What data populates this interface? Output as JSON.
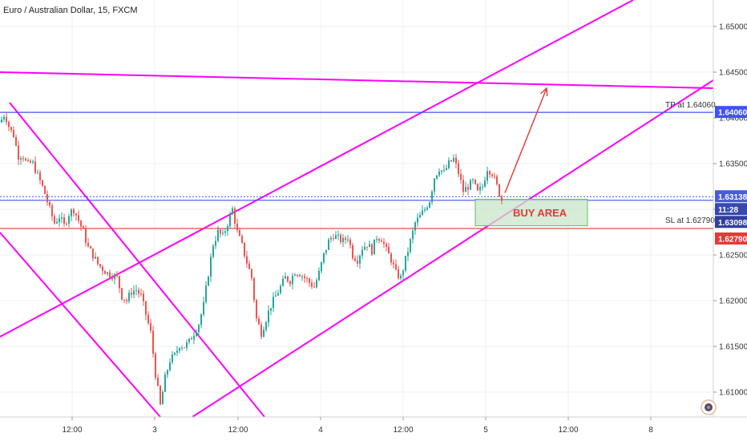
{
  "chart_data": {
    "type": "candlestick",
    "title": "Euro / Australian Dollar, 15, FXCM",
    "colors": {
      "up": "#26a69a",
      "down": "#ef5350",
      "trend": "#ff00ff",
      "level_blue": "#3f51f5",
      "level_red": "#e53935",
      "buy_fill": "#c8e6c9"
    },
    "x_ticks": [
      "12:00",
      "3",
      "12:00",
      "4",
      "12:00",
      "5",
      "12:00",
      "8"
    ],
    "y_ticks": [
      "1.61000",
      "1.61500",
      "1.62000",
      "1.62500",
      "1.63000",
      "1.63500",
      "1.64000",
      "1.64500",
      "1.65000"
    ],
    "levels": [
      {
        "name": "tp",
        "price": 1.6406,
        "label": "TP at 1.64060",
        "badge": "1.64060"
      },
      {
        "name": "current",
        "price": 1.63138,
        "badge": "1.63138"
      },
      {
        "name": "timer",
        "price": 1.6311,
        "badge": "11:28"
      },
      {
        "name": "bid",
        "price": 1.63098,
        "badge": "1.63098"
      },
      {
        "name": "sl",
        "price": 1.6279,
        "label": "SL at 1.62790",
        "badge": "1.62790"
      }
    ],
    "buy_area": {
      "label": "BUY AREA",
      "price_top": 1.6311,
      "price_bottom": 1.6282
    },
    "price_path": [
      [
        0,
        1.6395
      ],
      [
        6,
        1.6405
      ],
      [
        12,
        1.6388
      ],
      [
        18,
        1.638
      ],
      [
        22,
        1.6358
      ],
      [
        28,
        1.636
      ],
      [
        34,
        1.6348
      ],
      [
        40,
        1.6352
      ],
      [
        48,
        1.6335
      ],
      [
        55,
        1.632
      ],
      [
        62,
        1.63
      ],
      [
        68,
        1.6285
      ],
      [
        74,
        1.6292
      ],
      [
        80,
        1.6282
      ],
      [
        86,
        1.6295
      ],
      [
        92,
        1.63
      ],
      [
        98,
        1.6288
      ],
      [
        104,
        1.6275
      ],
      [
        110,
        1.6258
      ],
      [
        116,
        1.625
      ],
      [
        122,
        1.624
      ],
      [
        128,
        1.6235
      ],
      [
        134,
        1.623
      ],
      [
        140,
        1.6228
      ],
      [
        146,
        1.6225
      ],
      [
        152,
        1.6205
      ],
      [
        158,
        1.62
      ],
      [
        164,
        1.621
      ],
      [
        170,
        1.6212
      ],
      [
        176,
        1.6205
      ],
      [
        182,
        1.6185
      ],
      [
        188,
        1.6165
      ],
      [
        194,
        1.612
      ],
      [
        200,
        1.6085
      ],
      [
        206,
        1.6115
      ],
      [
        212,
        1.6135
      ],
      [
        218,
        1.614
      ],
      [
        224,
        1.6152
      ],
      [
        230,
        1.615
      ],
      [
        236,
        1.6155
      ],
      [
        242,
        1.6165
      ],
      [
        248,
        1.6175
      ],
      [
        254,
        1.6195
      ],
      [
        260,
        1.623
      ],
      [
        266,
        1.6262
      ],
      [
        272,
        1.6275
      ],
      [
        278,
        1.627
      ],
      [
        284,
        1.6285
      ],
      [
        290,
        1.63
      ],
      [
        296,
        1.6275
      ],
      [
        302,
        1.626
      ],
      [
        308,
        1.6242
      ],
      [
        314,
        1.6225
      ],
      [
        320,
        1.618
      ],
      [
        326,
        1.6165
      ],
      [
        332,
        1.618
      ],
      [
        338,
        1.6195
      ],
      [
        344,
        1.6205
      ],
      [
        350,
        1.6215
      ],
      [
        356,
        1.6225
      ],
      [
        362,
        1.6222
      ],
      [
        368,
        1.6232
      ],
      [
        374,
        1.623
      ],
      [
        380,
        1.6225
      ],
      [
        386,
        1.622
      ],
      [
        392,
        1.6215
      ],
      [
        398,
        1.623
      ],
      [
        404,
        1.625
      ],
      [
        410,
        1.6265
      ],
      [
        416,
        1.6272
      ],
      [
        422,
        1.6268
      ],
      [
        428,
        1.6265
      ],
      [
        434,
        1.627
      ],
      [
        440,
        1.625
      ],
      [
        446,
        1.6245
      ],
      [
        452,
        1.6258
      ],
      [
        458,
        1.6262
      ],
      [
        464,
        1.6255
      ],
      [
        470,
        1.627
      ],
      [
        476,
        1.6268
      ],
      [
        482,
        1.6255
      ],
      [
        488,
        1.6245
      ],
      [
        494,
        1.623
      ],
      [
        500,
        1.6225
      ],
      [
        506,
        1.6245
      ],
      [
        512,
        1.6265
      ],
      [
        518,
        1.6285
      ],
      [
        524,
        1.6292
      ],
      [
        530,
        1.63
      ],
      [
        536,
        1.631
      ],
      [
        542,
        1.6335
      ],
      [
        548,
        1.6345
      ],
      [
        554,
        1.634
      ],
      [
        560,
        1.635
      ],
      [
        566,
        1.6355
      ],
      [
        572,
        1.634
      ],
      [
        578,
        1.632
      ],
      [
        584,
        1.6325
      ],
      [
        590,
        1.633
      ],
      [
        596,
        1.6318
      ],
      [
        602,
        1.6325
      ],
      [
        608,
        1.6345
      ],
      [
        614,
        1.634
      ],
      [
        620,
        1.6325
      ],
      [
        626,
        1.631
      ],
      [
        630,
        1.6315
      ]
    ]
  }
}
